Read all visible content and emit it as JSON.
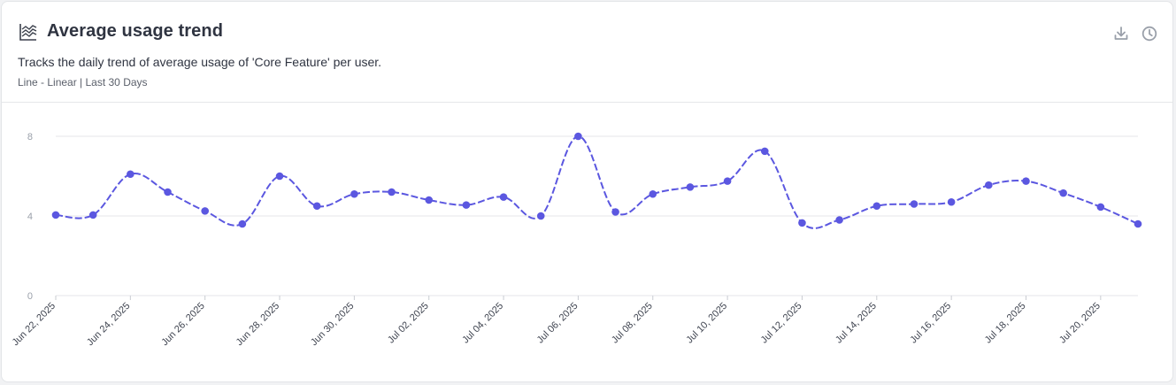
{
  "card": {
    "title": "Average usage trend",
    "title_icon": "line-chart-icon",
    "description": "Tracks the daily trend of average usage of 'Core Feature' per user.",
    "meta": "Line - Linear | Last 30 Days",
    "actions": [
      {
        "name": "download-icon",
        "label": "Download"
      },
      {
        "name": "history-clock-icon",
        "label": "History"
      }
    ]
  },
  "colors": {
    "series": "#5b57e0",
    "grid": "#e4e6ea",
    "axis_text": "#3f4450",
    "ytick_text": "#9aa0aa",
    "icon": "#9aa0aa"
  },
  "chart_data": {
    "type": "line",
    "curve": "smooth",
    "dashed_line": true,
    "grid": true,
    "legend": "none",
    "ylim": [
      0,
      8
    ],
    "yticks": [
      "0",
      "4",
      "8"
    ],
    "x": [
      "Jun 22, 2025",
      "Jun 23, 2025",
      "Jun 24, 2025",
      "Jun 25, 2025",
      "Jun 26, 2025",
      "Jun 27, 2025",
      "Jun 28, 2025",
      "Jun 29, 2025",
      "Jun 30, 2025",
      "Jul 01, 2025",
      "Jul 02, 2025",
      "Jul 03, 2025",
      "Jul 04, 2025",
      "Jul 05, 2025",
      "Jul 06, 2025",
      "Jul 07, 2025",
      "Jul 08, 2025",
      "Jul 09, 2025",
      "Jul 10, 2025",
      "Jul 11, 2025",
      "Jul 12, 2025",
      "Jul 13, 2025",
      "Jul 14, 2025",
      "Jul 15, 2025",
      "Jul 16, 2025",
      "Jul 17, 2025",
      "Jul 18, 2025",
      "Jul 19, 2025",
      "Jul 20, 2025",
      "Jul 21, 2025"
    ],
    "xtick_labels": [
      "Jun 22, 2025",
      "Jun 24, 2025",
      "Jun 26, 2025",
      "Jun 28, 2025",
      "Jun 30, 2025",
      "Jul 02, 2025",
      "Jul 04, 2025",
      "Jul 06, 2025",
      "Jul 08, 2025",
      "Jul 10, 2025",
      "Jul 12, 2025",
      "Jul 14, 2025",
      "Jul 16, 2025",
      "Jul 18, 2025",
      "Jul 20, 2025"
    ],
    "series": [
      {
        "values": [
          4.05,
          4.05,
          6.1,
          5.2,
          4.25,
          3.6,
          6.0,
          4.5,
          5.1,
          5.2,
          4.8,
          4.55,
          4.95,
          4.0,
          8.0,
          4.2,
          5.1,
          5.45,
          5.75,
          7.25,
          3.65,
          3.8,
          4.5,
          4.6,
          4.7,
          5.55,
          5.75,
          5.15,
          4.45,
          3.6
        ]
      }
    ]
  }
}
